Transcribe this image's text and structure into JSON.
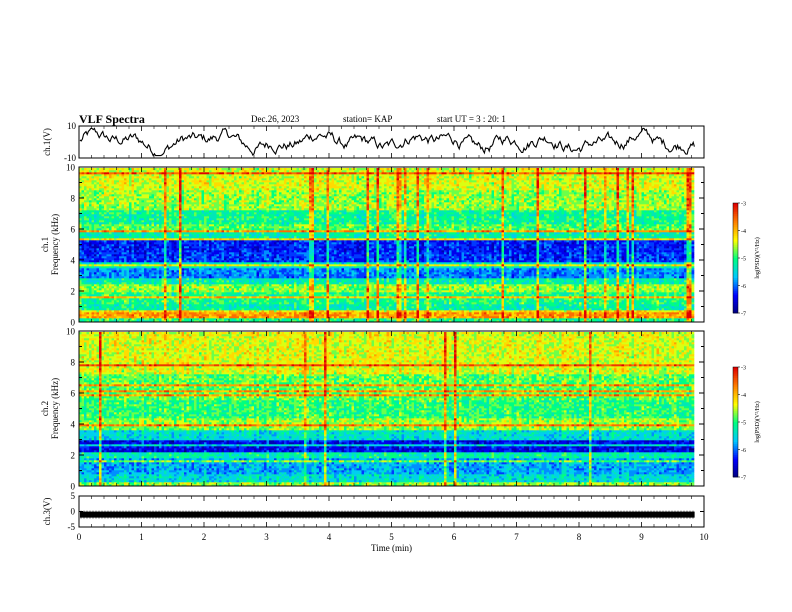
{
  "header": {
    "title": "VLF Spectra",
    "date": "Dec.26, 2023",
    "station": "station= KAP",
    "start": "start UT = 3 : 20: 1"
  },
  "chart_data": [
    {
      "type": "line",
      "name": "ch1-waveform",
      "ylabel": "ch.1(V)",
      "ylim": [
        -10,
        10
      ],
      "yticks": [
        "10",
        "-10"
      ],
      "xlim": [
        0,
        10
      ]
    },
    {
      "type": "heatmap",
      "name": "ch1-spectrogram",
      "ylabel_line1": "ch.1",
      "ylabel_line2": "Frequency (kHz)",
      "ylim": [
        0,
        10
      ],
      "yticks": [
        "0",
        "2",
        "4",
        "6",
        "8",
        "10"
      ],
      "xlim": [
        0,
        9.85
      ],
      "colorbar": {
        "label": "log(PSD)(V²/Hz)",
        "range": [
          -7,
          -3
        ],
        "ticks": [
          "-3",
          "-4",
          "-5",
          "-6",
          "-7"
        ]
      },
      "bands_khz": [
        {
          "from": 0.0,
          "to": 0.25,
          "level": 0.5
        },
        {
          "from": 0.25,
          "to": 0.6,
          "level": 0.8
        },
        {
          "from": 0.6,
          "to": 1.2,
          "level": 0.45
        },
        {
          "from": 1.2,
          "to": 1.9,
          "level": 0.5
        },
        {
          "from": 1.9,
          "to": 2.4,
          "level": 0.6
        },
        {
          "from": 2.4,
          "to": 2.9,
          "level": 0.45
        },
        {
          "from": 2.9,
          "to": 3.5,
          "level": 0.28
        },
        {
          "from": 3.5,
          "to": 3.9,
          "level": 0.42
        },
        {
          "from": 3.9,
          "to": 4.5,
          "level": 0.2
        },
        {
          "from": 4.5,
          "to": 5.3,
          "level": 0.18
        },
        {
          "from": 5.3,
          "to": 5.8,
          "level": 0.45
        },
        {
          "from": 5.8,
          "to": 6.3,
          "level": 0.55
        },
        {
          "from": 6.3,
          "to": 7.2,
          "level": 0.48
        },
        {
          "from": 7.2,
          "to": 8.5,
          "level": 0.6
        },
        {
          "from": 8.5,
          "to": 10.0,
          "level": 0.65
        }
      ]
    },
    {
      "type": "heatmap",
      "name": "ch2-spectrogram",
      "ylabel_line1": "ch.2",
      "ylabel_line2": "Frequency (kHz)",
      "ylim": [
        0,
        10
      ],
      "yticks": [
        "0",
        "2",
        "4",
        "6",
        "8",
        "10"
      ],
      "xlim": [
        0,
        9.85
      ],
      "colorbar": {
        "label": "log(PSD)(V²/Hz)",
        "range": [
          -7,
          -3
        ],
        "ticks": [
          "-3",
          "-4",
          "-5",
          "-6",
          "-7"
        ]
      },
      "bands_khz": [
        {
          "from": 0.0,
          "to": 0.3,
          "level": 0.6
        },
        {
          "from": 0.3,
          "to": 0.8,
          "level": 0.4
        },
        {
          "from": 0.8,
          "to": 1.8,
          "level": 0.32
        },
        {
          "from": 1.8,
          "to": 2.2,
          "level": 0.45
        },
        {
          "from": 2.2,
          "to": 3.0,
          "level": 0.15
        },
        {
          "from": 3.0,
          "to": 3.6,
          "level": 0.4
        },
        {
          "from": 3.6,
          "to": 4.4,
          "level": 0.6
        },
        {
          "from": 4.4,
          "to": 5.6,
          "level": 0.52
        },
        {
          "from": 5.6,
          "to": 7.2,
          "level": 0.56
        },
        {
          "from": 7.2,
          "to": 10.0,
          "level": 0.66
        }
      ]
    },
    {
      "type": "line",
      "name": "ch3-waveform",
      "ylabel": "ch.3(V)",
      "ylim": [
        -5,
        5
      ],
      "yticks": [
        "5",
        "0",
        "-5"
      ],
      "xlim": [
        0,
        10
      ],
      "baseline_v": -1
    }
  ],
  "xaxis": {
    "label": "Time (min)",
    "ticks": [
      "0",
      "1",
      "2",
      "3",
      "4",
      "5",
      "6",
      "7",
      "8",
      "9",
      "10"
    ]
  },
  "colors": {
    "colormap": [
      "#00007a",
      "#0000ff",
      "#00c8ff",
      "#00ff80",
      "#ffff00",
      "#ff8000",
      "#e00000",
      "#ffffff"
    ]
  }
}
